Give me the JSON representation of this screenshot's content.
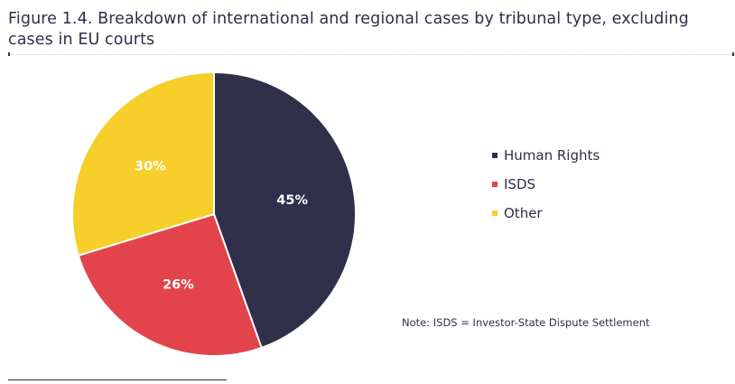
{
  "title": "Figure 1.4. Breakdown of international and regional cases by tribunal type, excluding cases in EU courts",
  "note": "Note: ISDS = Investor-State Dispute Settlement",
  "chart_data": {
    "type": "pie",
    "title": "Figure 1.4. Breakdown of international and regional cases by tribunal type, excluding cases in EU courts",
    "categories": [
      "Human Rights",
      "ISDS",
      "Other"
    ],
    "values": [
      45,
      26,
      30
    ],
    "labels": [
      "45%",
      "26%",
      "30%"
    ],
    "colors": [
      "#30304b",
      "#e3434b",
      "#f7ce2a"
    ],
    "label_colors": [
      "#ffffff",
      "#ffffff",
      "#ffffff"
    ],
    "start": "12 o'clock, clockwise",
    "legend_position": "right"
  },
  "legend": [
    {
      "label": "Human Rights",
      "color": "#30304b"
    },
    {
      "label": "ISDS",
      "color": "#e3434b"
    },
    {
      "label": "Other",
      "color": "#f7ce2a"
    }
  ]
}
